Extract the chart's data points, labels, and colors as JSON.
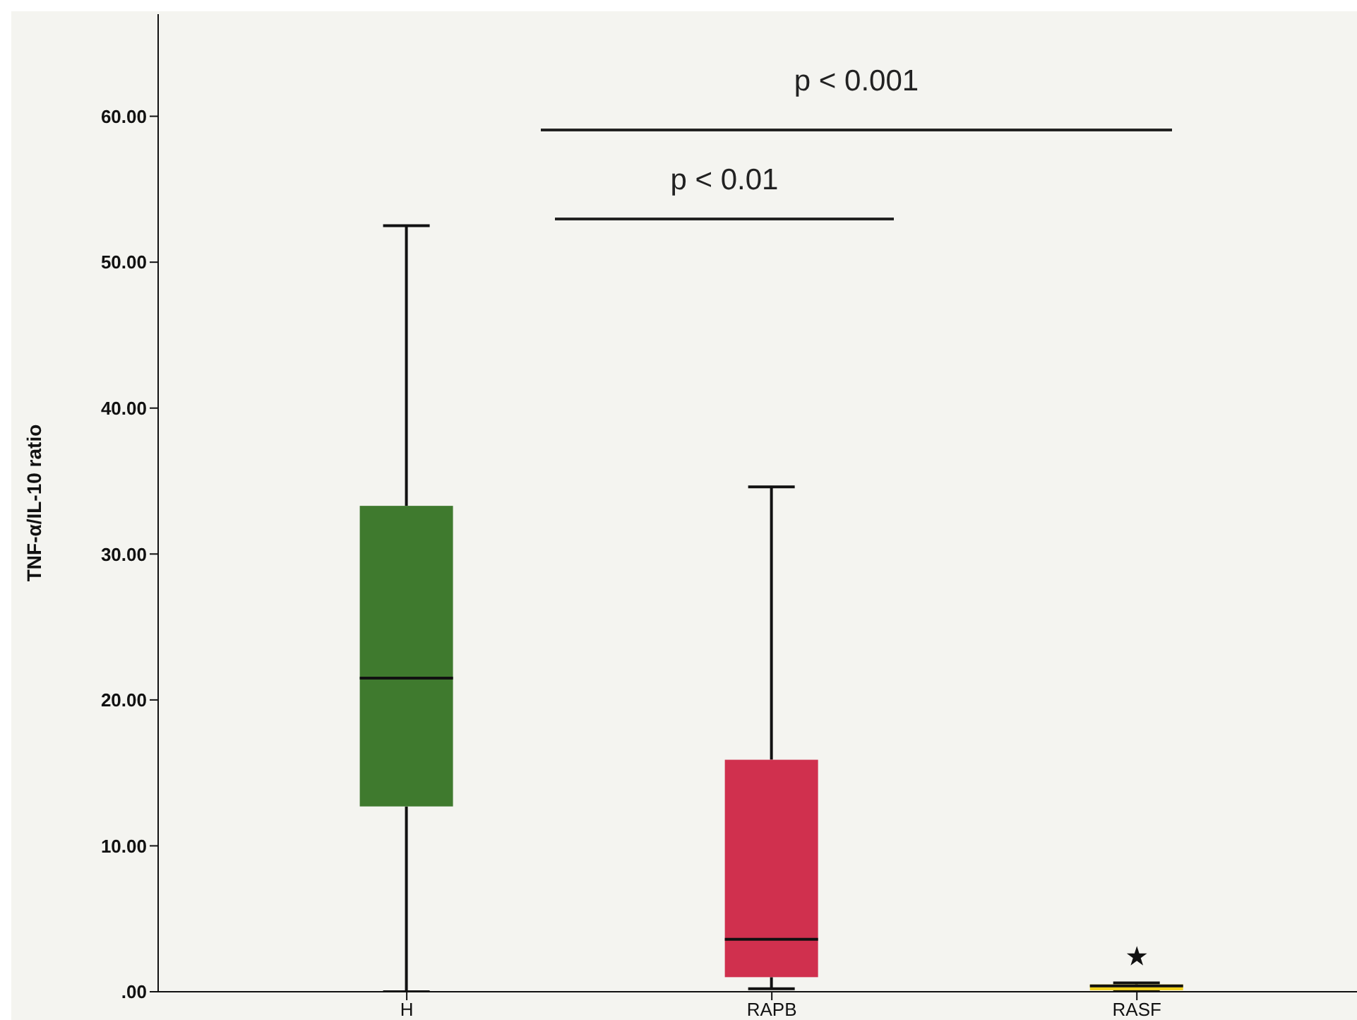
{
  "chart_data": {
    "type": "box",
    "ylabel": "TNF-α/IL-10 ratio",
    "categories": [
      "H",
      "RAPB",
      "RASF"
    ],
    "boxes": [
      {
        "low": 0,
        "q1": 12.7,
        "median": 21.5,
        "q3": 33.3,
        "high": 52.5
      },
      {
        "low": 0.2,
        "q1": 1.0,
        "median": 3.6,
        "q3": 15.9,
        "high": 34.6
      },
      {
        "low": 0.1,
        "q1": 0.1,
        "median": 0.4,
        "q3": 0.5,
        "high": 0.6,
        "outliers": [
          2.4
        ]
      }
    ],
    "colors": [
      "#3f7a2e",
      "#d0304e",
      "#f2d21c"
    ],
    "ylim": [
      0,
      67
    ],
    "yticks": [
      {
        "value": 0,
        "label": ".00"
      },
      {
        "value": 10,
        "label": "10.00"
      },
      {
        "value": 20,
        "label": "20.00"
      },
      {
        "value": 30,
        "label": "30.00"
      },
      {
        "value": 40,
        "label": "40.00"
      },
      {
        "value": 50,
        "label": "50.00"
      },
      {
        "value": 60,
        "label": "60.00"
      }
    ],
    "annotations": [
      "p < 0.001",
      "p < 0.01"
    ],
    "grid": false,
    "legend": false
  }
}
